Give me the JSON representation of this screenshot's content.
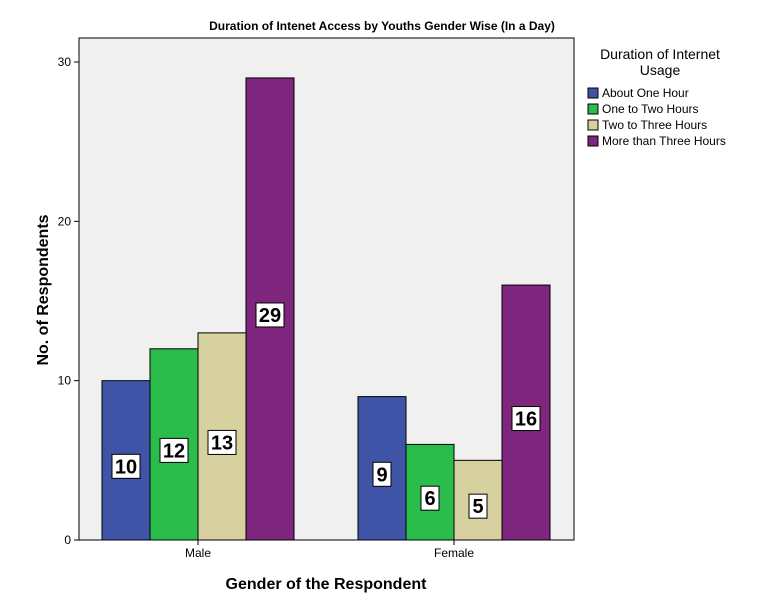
{
  "chart_data": {
    "type": "bar",
    "title": "Duration of Intenet Access by Youths Gender Wise (In a Day)",
    "xlabel": "Gender of the Respondent",
    "ylabel": "No. of Respondents",
    "categories": [
      "Male",
      "Female"
    ],
    "yticks": [
      "0",
      "10",
      "20",
      "30"
    ],
    "ylim": [
      0,
      30
    ],
    "grid": false,
    "legend_title": [
      "Duration of Internet",
      "Usage"
    ],
    "legend_position": "top-right",
    "series": [
      {
        "name": "About One Hour",
        "color": "#3f54a6",
        "values": [
          10,
          9
        ],
        "labels": [
          "10",
          "9"
        ]
      },
      {
        "name": "One to Two Hours",
        "color": "#2bbd4b",
        "values": [
          12,
          6
        ],
        "labels": [
          "12",
          "6"
        ]
      },
      {
        "name": "Two to Three Hours",
        "color": "#d6d19e",
        "values": [
          13,
          5
        ],
        "labels": [
          "13",
          "5"
        ]
      },
      {
        "name": "More than Three Hours",
        "color": "#7e267d",
        "values": [
          29,
          16
        ],
        "labels": [
          "29",
          "16"
        ]
      }
    ],
    "plot_background": "#f0f0f0"
  }
}
